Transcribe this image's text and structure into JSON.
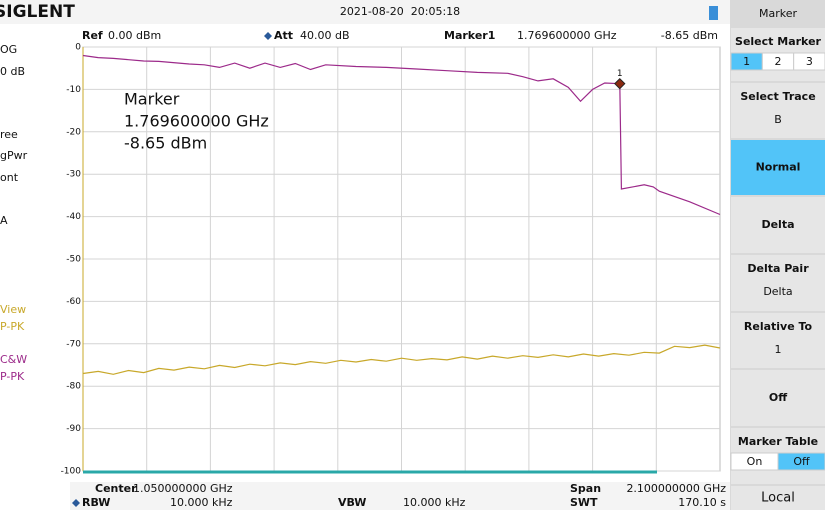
{
  "header": {
    "logo": "SIGLENT",
    "datetime": "2021-08-20  20:05:18"
  },
  "info": {
    "ref_label": "Ref",
    "ref": "0.00 dBm",
    "att_label": "Att",
    "att": "40.00 dB",
    "marker_label": "Marker1",
    "marker_freq": "1.769600000 GHz",
    "marker_level": "-8.65 dBm"
  },
  "left_panel": [
    "OG",
    "0 dB",
    "ree",
    "gPwr",
    "ont",
    "A",
    "View",
    "P-PK",
    "C&W",
    "P-PK"
  ],
  "footer": {
    "center_label": "Center",
    "center": "1.050000000 GHz",
    "span_label": "Span",
    "span": "2.100000000 GHz",
    "rbw_label": "RBW",
    "rbw": "10.000 kHz",
    "vbw_label": "VBW",
    "vbw": "10.000 kHz",
    "swt_label": "SWT",
    "swt": "170.10 s"
  },
  "menu": {
    "title": "Marker",
    "items": [
      {
        "label": "Select Marker",
        "options": [
          "1",
          "2",
          "3"
        ]
      },
      {
        "label": "Select Trace",
        "value": "B"
      },
      {
        "label": "Normal"
      },
      {
        "label": "Delta"
      },
      {
        "label": "Delta Pair",
        "value": "Delta"
      },
      {
        "label": "Relative To",
        "value": "1"
      },
      {
        "label": "Off"
      },
      {
        "label": "Marker Table",
        "options": [
          "On",
          "Off"
        ]
      }
    ],
    "footer": "Local"
  },
  "chart_data": {
    "type": "line",
    "xlim": [
      0,
      2.1
    ],
    "ylim": [
      -100,
      0
    ],
    "yticks": [
      0,
      -10,
      -20,
      -30,
      -40,
      -50,
      -60,
      -70,
      -80,
      -90,
      -100
    ],
    "grid": true,
    "annotation": [
      "Marker",
      "1.769600000 GHz",
      "-8.65 dBm"
    ],
    "marker": {
      "label": "1",
      "x": 1.7696,
      "y": -8.65,
      "color": "#8b2a10"
    },
    "series": [
      {
        "color": "#9c2a8a",
        "x": [
          0,
          0.05,
          0.1,
          0.2,
          0.25,
          0.35,
          0.4,
          0.45,
          0.5,
          0.55,
          0.6,
          0.65,
          0.7,
          0.75,
          0.8,
          0.9,
          1.0,
          1.1,
          1.2,
          1.3,
          1.4,
          1.45,
          1.5,
          1.55,
          1.6,
          1.64,
          1.68,
          1.72,
          1.7696,
          1.775,
          1.85,
          1.88,
          1.9,
          2.0,
          2.1
        ],
        "values": [
          -2.0,
          -2.5,
          -2.7,
          -3.3,
          -3.4,
          -4.0,
          -4.2,
          -4.8,
          -3.8,
          -5.0,
          -3.8,
          -4.8,
          -3.9,
          -5.3,
          -4.2,
          -4.6,
          -4.8,
          -5.2,
          -5.6,
          -6.0,
          -6.2,
          -7.0,
          -8.0,
          -7.5,
          -9.5,
          -12.8,
          -10.0,
          -8.5,
          -8.65,
          -33.5,
          -32.5,
          -33.0,
          -34.0,
          -36.5,
          -39.5
        ]
      },
      {
        "color": "#c8a82a",
        "x": [
          0,
          0.05,
          0.1,
          0.15,
          0.2,
          0.25,
          0.3,
          0.35,
          0.4,
          0.45,
          0.5,
          0.55,
          0.6,
          0.65,
          0.7,
          0.75,
          0.8,
          0.85,
          0.9,
          0.95,
          1.0,
          1.05,
          1.1,
          1.15,
          1.2,
          1.25,
          1.3,
          1.35,
          1.4,
          1.45,
          1.5,
          1.55,
          1.6,
          1.65,
          1.7,
          1.75,
          1.8,
          1.85,
          1.9,
          1.95,
          2.0,
          2.05,
          2.1
        ],
        "values": [
          -77.0,
          -76.5,
          -77.2,
          -76.3,
          -76.8,
          -75.8,
          -76.2,
          -75.5,
          -75.9,
          -75.1,
          -75.6,
          -74.8,
          -75.2,
          -74.5,
          -74.9,
          -74.2,
          -74.6,
          -73.9,
          -74.3,
          -73.7,
          -74.1,
          -73.4,
          -73.9,
          -73.5,
          -73.8,
          -73.1,
          -73.6,
          -72.9,
          -73.4,
          -72.8,
          -73.2,
          -72.6,
          -73.1,
          -72.4,
          -72.9,
          -72.3,
          -72.7,
          -72.0,
          -72.2,
          -70.6,
          -70.9,
          -70.3,
          -71.0
        ]
      }
    ]
  }
}
